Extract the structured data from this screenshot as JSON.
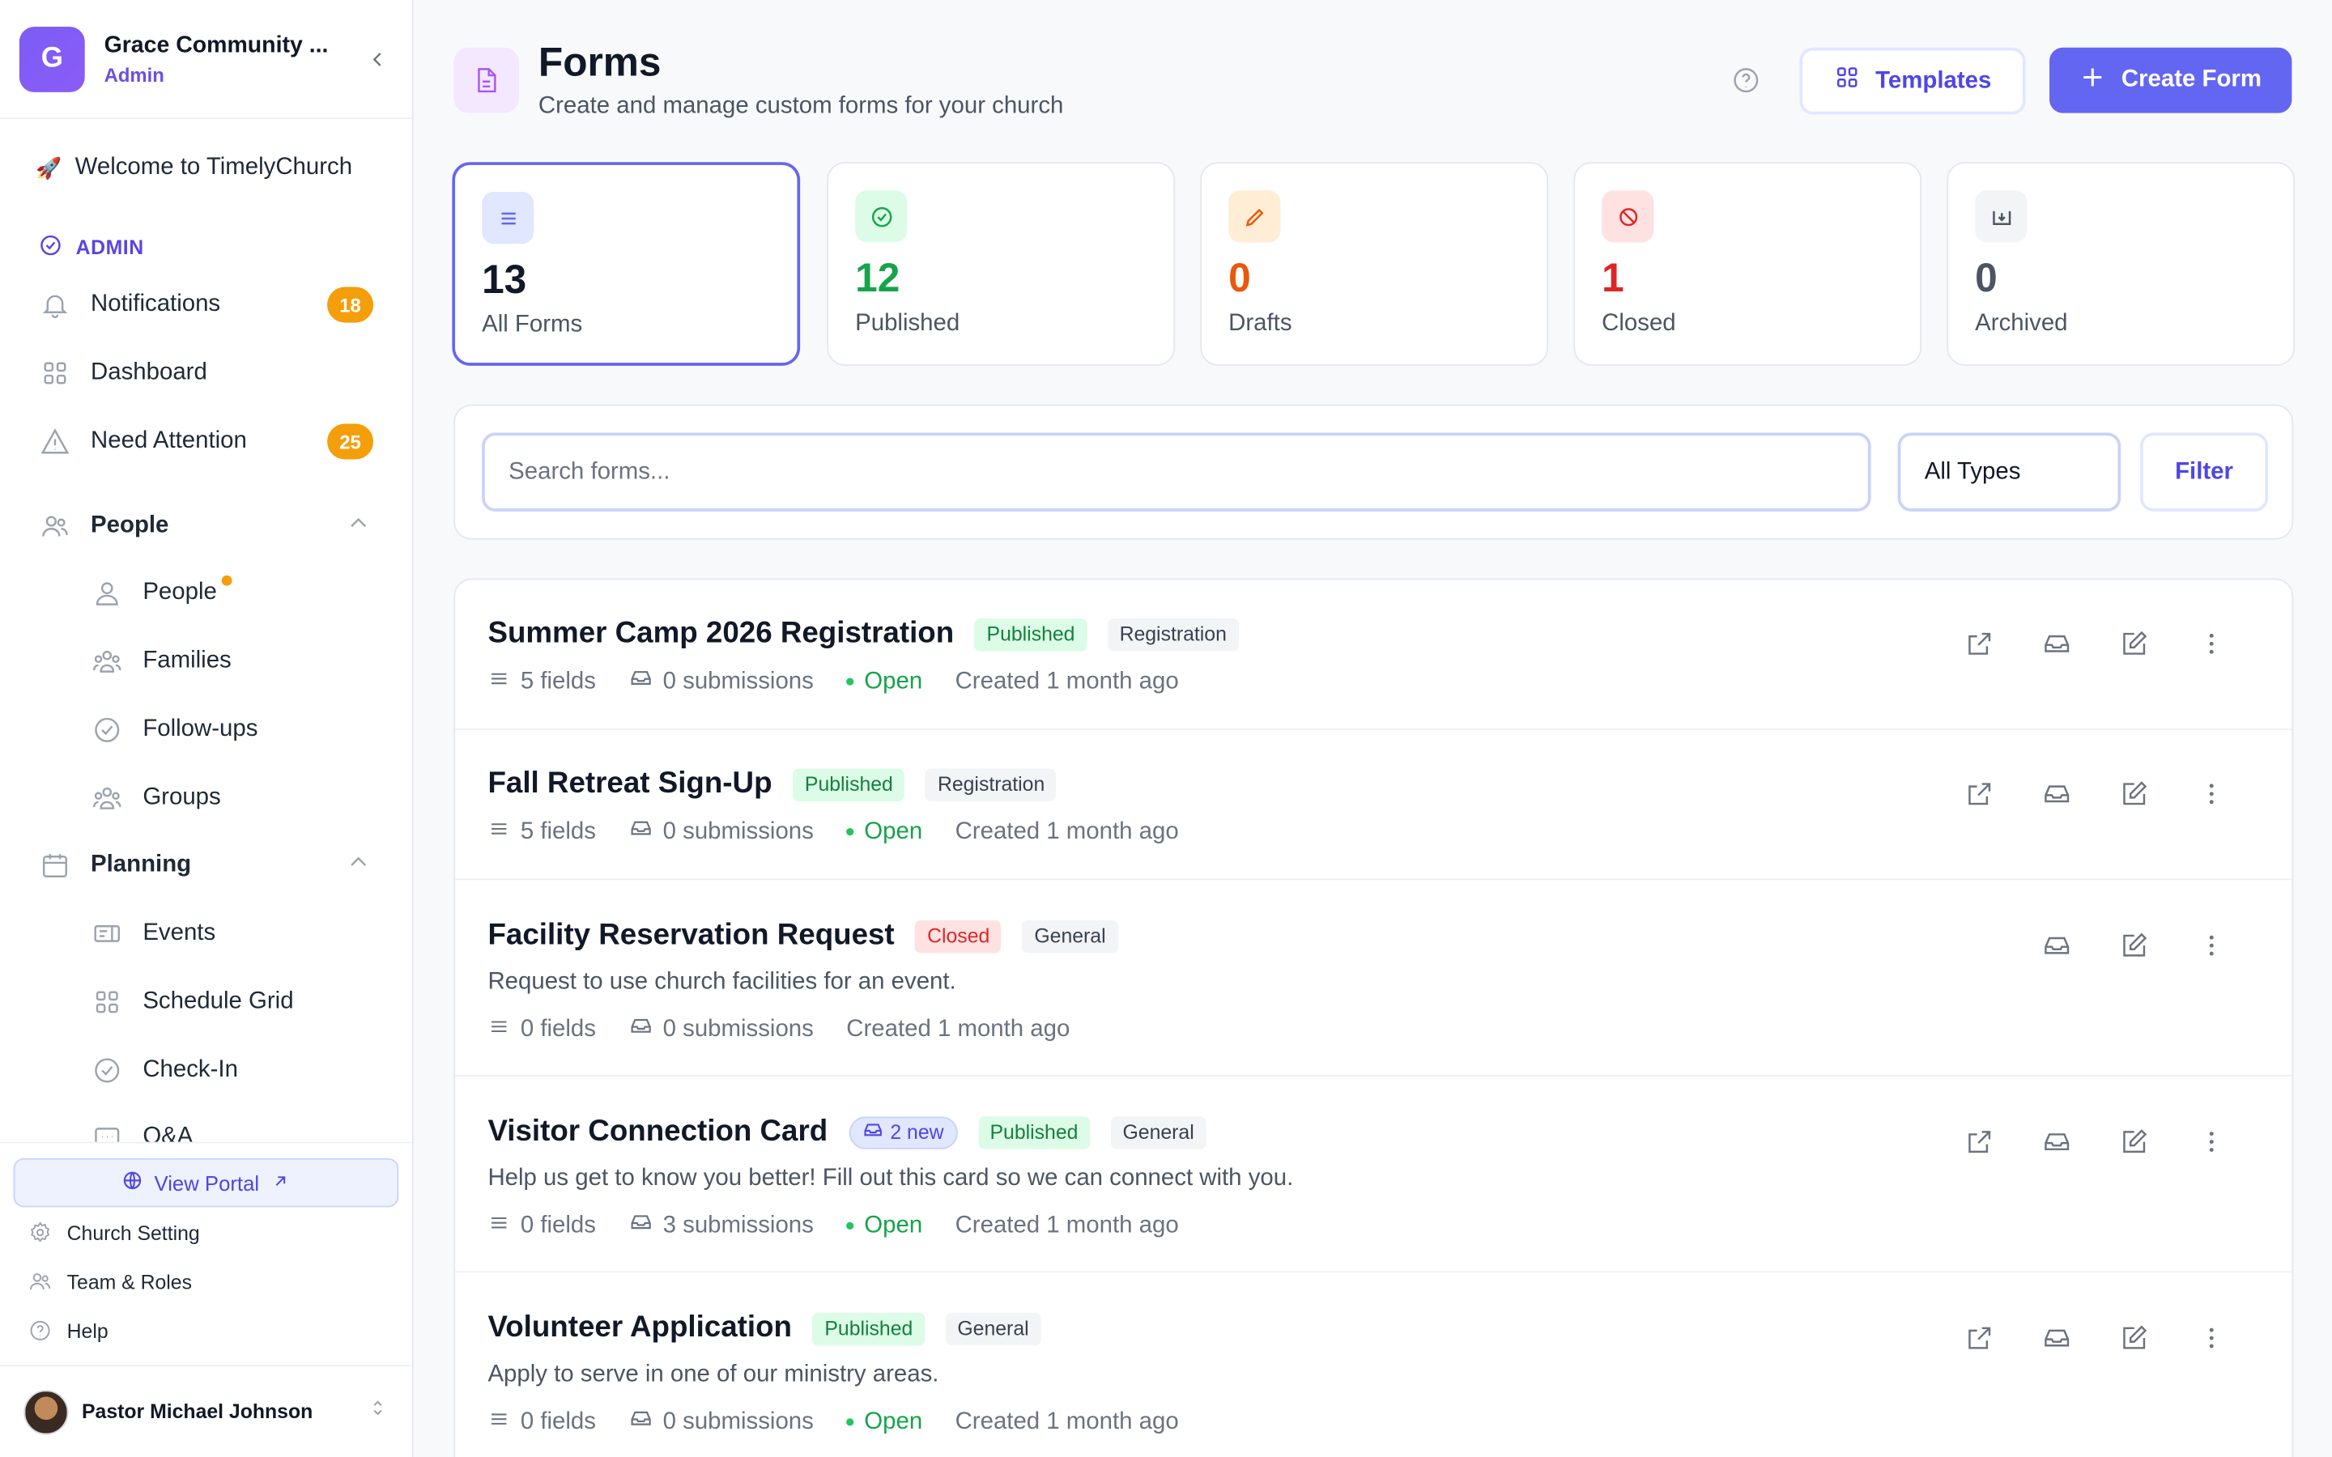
{
  "org": {
    "initial": "G",
    "name": "Grace Community ...",
    "role": "Admin"
  },
  "sidebar": {
    "welcome": "Welcome to TimelyChurch",
    "admin_label": "ADMIN",
    "notifications": {
      "label": "Notifications",
      "count": "18"
    },
    "dashboard": "Dashboard",
    "need_attention": {
      "label": "Need Attention",
      "count": "25"
    },
    "people_section": "People",
    "people_items": [
      "People",
      "Families",
      "Follow-ups",
      "Groups"
    ],
    "planning_section": "Planning",
    "planning_items": [
      "Events",
      "Schedule Grid",
      "Check-In",
      "Q&A"
    ],
    "view_portal": "View Portal",
    "church_setting": "Church Setting",
    "team_roles": "Team & Roles",
    "help": "Help",
    "user_name": "Pastor Michael Johnson"
  },
  "header": {
    "title": "Forms",
    "subtitle": "Create and manage custom forms for your church",
    "templates_label": "Templates",
    "create_label": "Create Form"
  },
  "stats": [
    {
      "value": "13",
      "label": "All Forms",
      "color": "#111827"
    },
    {
      "value": "12",
      "label": "Published",
      "color": "#16a34a"
    },
    {
      "value": "0",
      "label": "Drafts",
      "color": "#ea580c"
    },
    {
      "value": "1",
      "label": "Closed",
      "color": "#dc2626"
    },
    {
      "value": "0",
      "label": "Archived",
      "color": "#4b5563"
    }
  ],
  "filters": {
    "search_placeholder": "Search forms...",
    "type_value": "All Types",
    "filter_label": "Filter"
  },
  "forms": [
    {
      "name": "Summer Camp 2026 Registration",
      "status": "Published",
      "type": "Registration",
      "fields": "5 fields",
      "submissions": "0 submissions",
      "open": "Open",
      "created": "Created 1 month ago"
    },
    {
      "name": "Fall Retreat Sign-Up",
      "status": "Published",
      "type": "Registration",
      "fields": "5 fields",
      "submissions": "0 submissions",
      "open": "Open",
      "created": "Created 1 month ago"
    },
    {
      "name": "Facility Reservation Request",
      "status": "Closed",
      "type": "General",
      "description": "Request to use church facilities for an event.",
      "fields": "0 fields",
      "submissions": "0 submissions",
      "created": "Created 1 month ago"
    },
    {
      "name": "Visitor Connection Card",
      "new_badge": "2 new",
      "status": "Published",
      "type": "General",
      "description": "Help us get to know you better! Fill out this card so we can connect with you.",
      "fields": "0 fields",
      "submissions": "3 submissions",
      "open": "Open",
      "created": "Created 1 month ago"
    },
    {
      "name": "Volunteer Application",
      "status": "Published",
      "type": "General",
      "description": "Apply to serve in one of our ministry areas.",
      "fields": "0 fields",
      "submissions": "0 submissions",
      "open": "Open",
      "created": "Created 1 month ago"
    }
  ]
}
